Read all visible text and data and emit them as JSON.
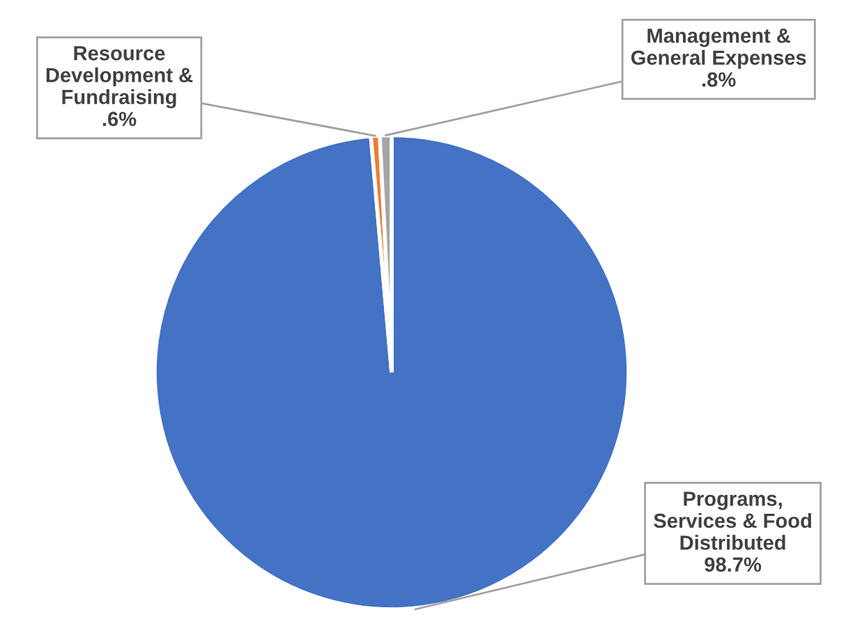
{
  "chart_data": {
    "type": "pie",
    "categories": [
      "Programs,\nServices & Food\nDistributed",
      "Resource\nDevelopment &\nFundraising",
      "Management &\nGeneral Expenses"
    ],
    "values": [
      98.7,
      0.6,
      0.8
    ],
    "colors": [
      "#4472c4",
      "#ed7d31",
      "#a5a5a5"
    ],
    "value_labels": [
      "98.7%",
      ".6%",
      ".8%"
    ],
    "legend": false
  }
}
